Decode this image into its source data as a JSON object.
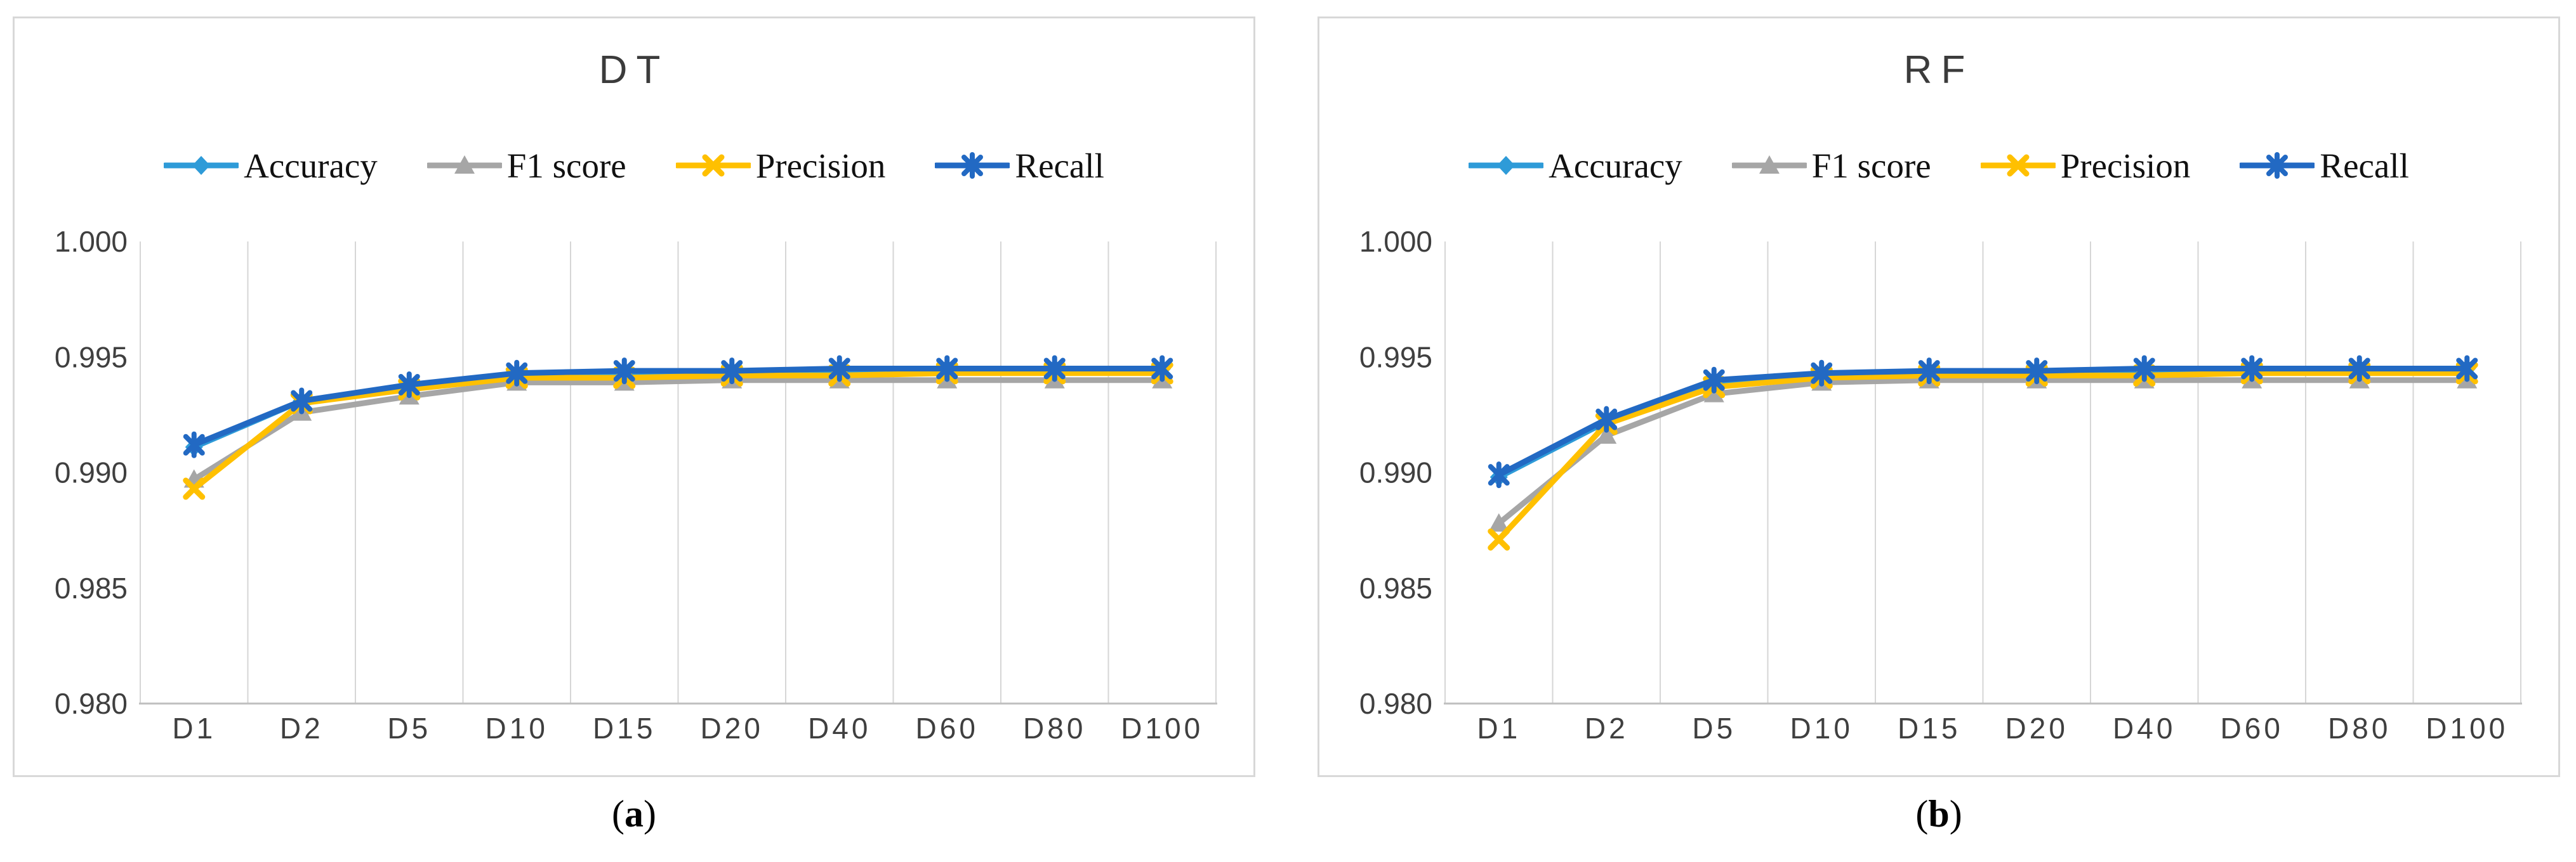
{
  "captions": {
    "a": {
      "open": "(",
      "letter": "a",
      "close": ")"
    },
    "b": {
      "open": "(",
      "letter": "b",
      "close": ")"
    }
  },
  "colors": {
    "accuracy": "#2E9BD8",
    "f1_score": "#A6A6A6",
    "precision": "#FFC000",
    "recall": "#2269C3",
    "gridline": "#D6D6D6",
    "axis_line": "#BFBFBF",
    "panel_border": "#D8D8D8",
    "tick_label": "#3F3F3F",
    "title_text": "#3B3B3B"
  },
  "chart_data": [
    {
      "type": "line",
      "title": "DT",
      "categories": [
        "D1",
        "D2",
        "D5",
        "D10",
        "D15",
        "D20",
        "D40",
        "D60",
        "D80",
        "D100"
      ],
      "ylim": [
        0.98,
        1.0
      ],
      "yticks": [
        "1.000",
        "0.995",
        "0.990",
        "0.985",
        "0.980"
      ],
      "grid": "vertical-only",
      "legend_position": "top",
      "series": [
        {
          "name": "Accuracy",
          "marker": "diamond",
          "color": "#2E9BD8",
          "values": [
            0.9911,
            0.9931,
            0.9937,
            0.9942,
            0.9943,
            0.9944,
            0.9944,
            0.9945,
            0.9945,
            0.9945
          ]
        },
        {
          "name": "F1 score",
          "marker": "triangle",
          "color": "#A6A6A6",
          "values": [
            0.9897,
            0.9926,
            0.9933,
            0.9939,
            0.9939,
            0.994,
            0.994,
            0.994,
            0.994,
            0.994
          ]
        },
        {
          "name": "Precision",
          "marker": "x",
          "color": "#FFC000",
          "values": [
            0.9893,
            0.993,
            0.9936,
            0.9941,
            0.9941,
            0.9942,
            0.9942,
            0.9943,
            0.9943,
            0.9943
          ]
        },
        {
          "name": "Recall",
          "marker": "asterisk",
          "color": "#2269C3",
          "values": [
            0.9912,
            0.9931,
            0.9938,
            0.9943,
            0.9944,
            0.9944,
            0.9945,
            0.9945,
            0.9945,
            0.9945
          ]
        }
      ]
    },
    {
      "type": "line",
      "title": "RF",
      "categories": [
        "D1",
        "D2",
        "D5",
        "D10",
        "D15",
        "D20",
        "D40",
        "D60",
        "D80",
        "D100"
      ],
      "ylim": [
        0.98,
        1.0
      ],
      "yticks": [
        "1.000",
        "0.995",
        "0.990",
        "0.985",
        "0.980"
      ],
      "grid": "vertical-only",
      "legend_position": "top",
      "series": [
        {
          "name": "Accuracy",
          "marker": "diamond",
          "color": "#2E9BD8",
          "values": [
            0.9898,
            0.9922,
            0.9939,
            0.9942,
            0.9943,
            0.9944,
            0.9944,
            0.9945,
            0.9945,
            0.9945
          ]
        },
        {
          "name": "F1 score",
          "marker": "triangle",
          "color": "#A6A6A6",
          "values": [
            0.9878,
            0.9916,
            0.9934,
            0.9939,
            0.994,
            0.994,
            0.994,
            0.994,
            0.994,
            0.994
          ]
        },
        {
          "name": "Precision",
          "marker": "x",
          "color": "#FFC000",
          "values": [
            0.9871,
            0.9921,
            0.9937,
            0.9941,
            0.9942,
            0.9942,
            0.9942,
            0.9943,
            0.9943,
            0.9943
          ]
        },
        {
          "name": "Recall",
          "marker": "asterisk",
          "color": "#2269C3",
          "values": [
            0.9899,
            0.9923,
            0.994,
            0.9943,
            0.9944,
            0.9944,
            0.9945,
            0.9945,
            0.9945,
            0.9945
          ]
        }
      ]
    }
  ]
}
